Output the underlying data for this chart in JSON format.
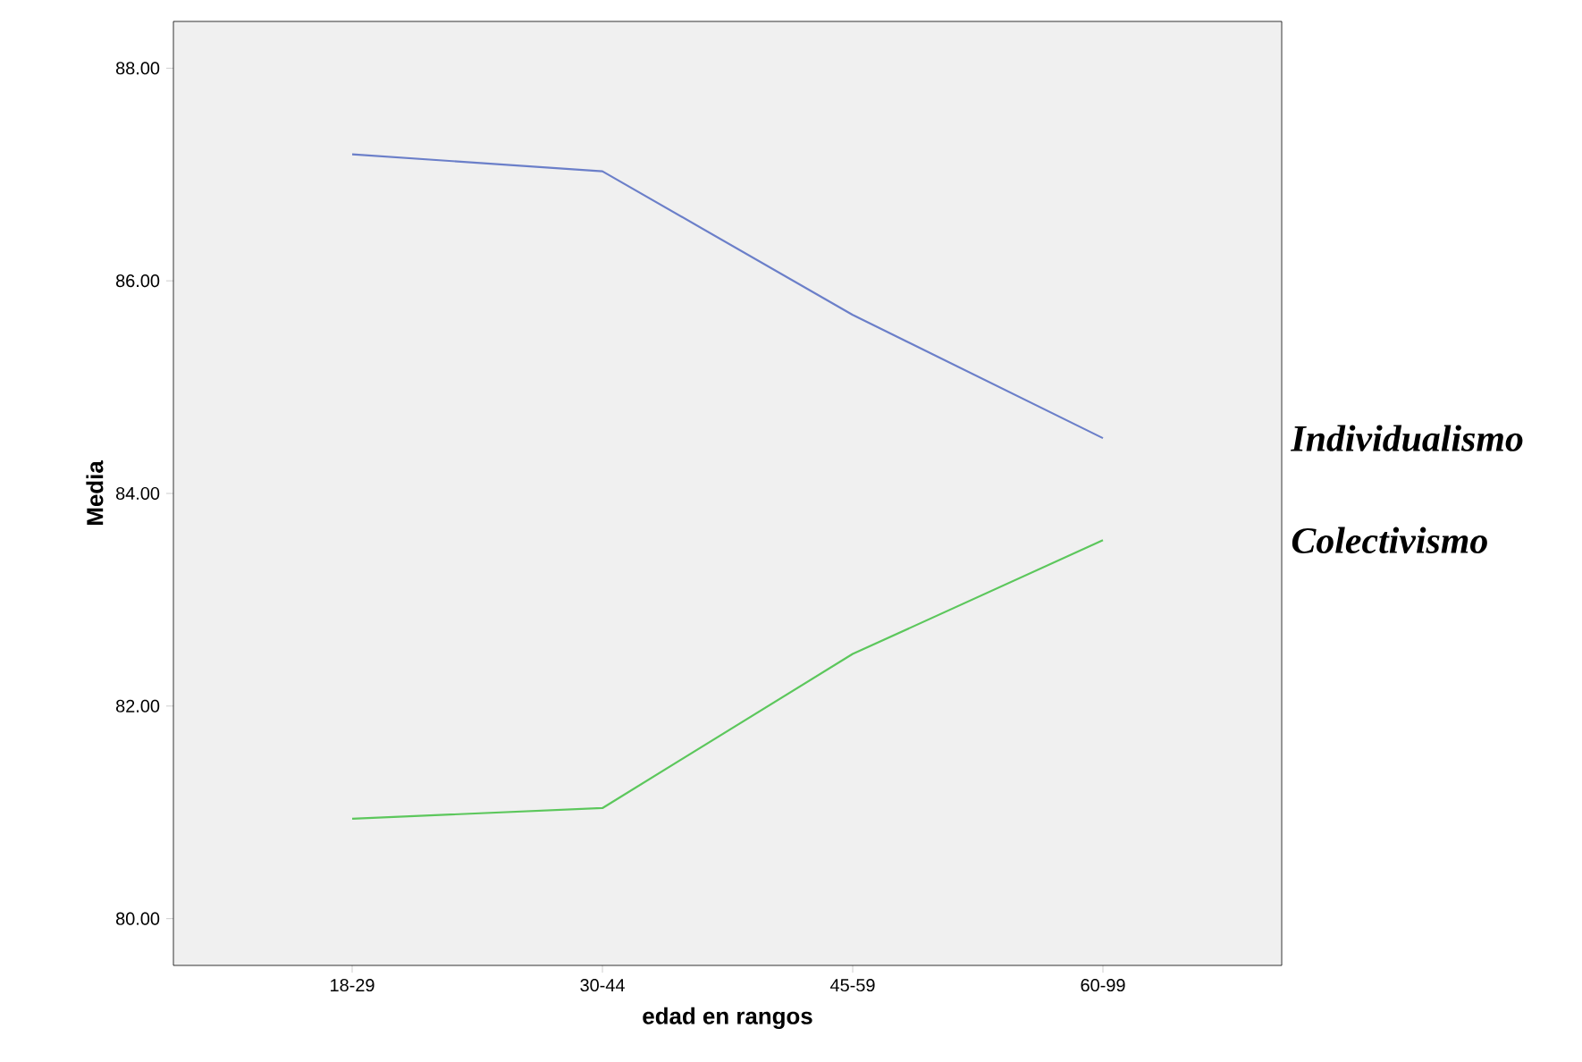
{
  "chart_data": {
    "type": "line",
    "xlabel": "edad en rangos",
    "ylabel": "Media",
    "categories": [
      "18-29",
      "30-44",
      "45-59",
      "60-99"
    ],
    "series": [
      {
        "name": "Individualismo",
        "color": "#6b7fc9",
        "values": [
          87.19,
          87.03,
          85.68,
          84.52
        ]
      },
      {
        "name": "Colectivismo",
        "color": "#5cc75c",
        "values": [
          80.94,
          81.04,
          82.49,
          83.56
        ]
      }
    ],
    "ylim": [
      79.56,
      88.44
    ],
    "yticks": [
      {
        "value": 80,
        "label": "80.00"
      },
      {
        "value": 82,
        "label": "82.00"
      },
      {
        "value": 84,
        "label": "84.00"
      },
      {
        "value": 86,
        "label": "86.00"
      },
      {
        "value": 88,
        "label": "88.00"
      }
    ],
    "grid": false,
    "marker": "none",
    "line_style": "solid"
  }
}
